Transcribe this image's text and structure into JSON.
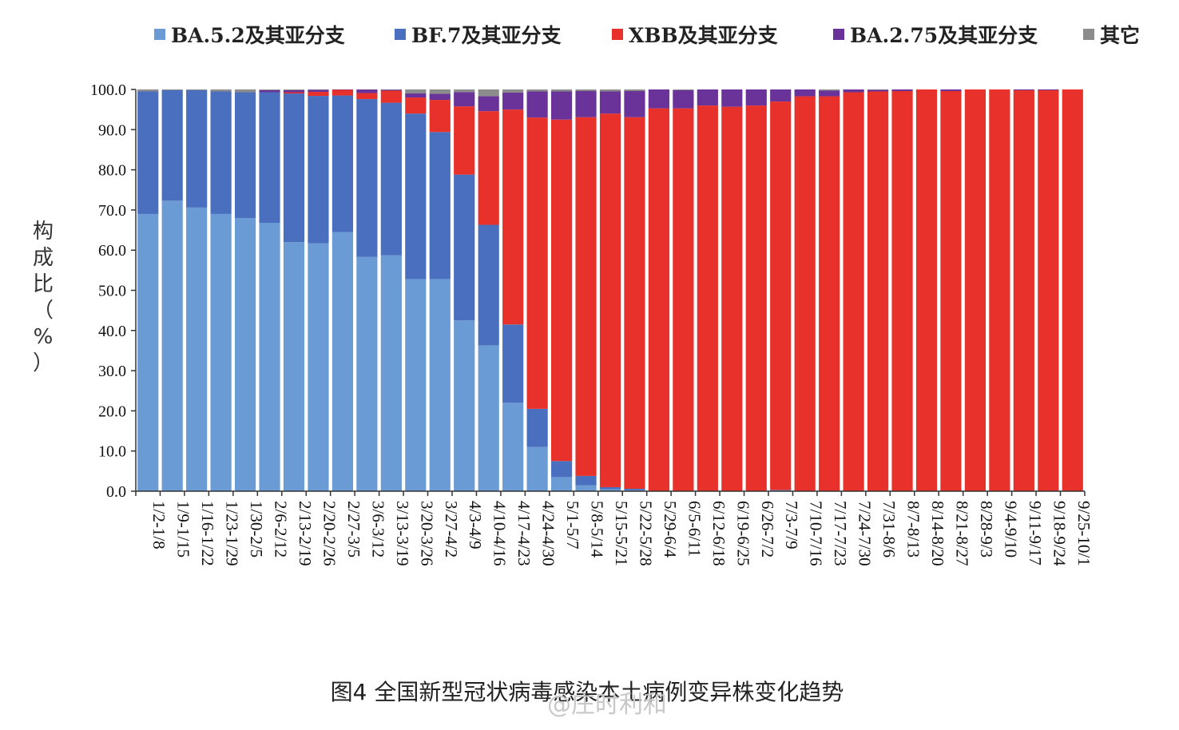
{
  "chart_data": {
    "type": "bar",
    "stacked": true,
    "caption": "图4 全国新型冠状病毒感染本土病例变异株变化趋势",
    "ylabel": "构成比（%）",
    "ylim": [
      0,
      100
    ],
    "yticks": [
      "0.0",
      "10.0",
      "20.0",
      "30.0",
      "40.0",
      "50.0",
      "60.0",
      "70.0",
      "80.0",
      "90.0",
      "100.0"
    ],
    "legend_position": "top",
    "grid": false,
    "categories": [
      "1/2-1/8",
      "1/9-1/15",
      "1/16-1/22",
      "1/23-1/29",
      "1/30-2/5",
      "2/6-2/12",
      "2/13-2/19",
      "2/20-2/26",
      "2/27-3/5",
      "3/6-3/12",
      "3/13-3/19",
      "3/20-3/26",
      "3/27-4/2",
      "4/3-4/9",
      "4/10-4/16",
      "4/17-4/23",
      "4/24-4/30",
      "5/1-5/7",
      "5/8-5/14",
      "5/15-5/21",
      "5/22-5/28",
      "5/29-6/4",
      "6/5-6/11",
      "6/12-6/18",
      "6/19-6/25",
      "6/26-7/2",
      "7/3-7/9",
      "7/10-7/16",
      "7/17-7/23",
      "7/24-7/30",
      "7/31-8/6",
      "8/7-8/13",
      "8/14-8/20",
      "8/21-8/27",
      "8/28-9/3",
      "9/4-9/10",
      "9/11-9/17",
      "9/18-9/24",
      "9/25-10/1"
    ],
    "series": [
      {
        "name": "BA.5.2及其亚分支",
        "color": "#6a9bd4",
        "values": [
          69,
          72.3,
          70.6,
          69,
          68,
          66.8,
          62,
          61.7,
          64.5,
          58.3,
          58.7,
          52.8,
          52.8,
          42.5,
          36.3,
          22,
          11,
          3.5,
          1.5,
          0.5,
          0.3,
          0,
          0,
          0,
          0,
          0,
          0.3,
          0,
          0,
          0,
          0,
          0,
          0,
          0,
          0,
          0,
          0,
          0,
          0
        ]
      },
      {
        "name": "BF.7及其亚分支",
        "color": "#4a6fbf",
        "values": [
          30.5,
          27.5,
          29.2,
          30.5,
          31.3,
          32.5,
          37,
          36.7,
          34,
          39.3,
          38,
          41.2,
          36.6,
          36.3,
          30,
          19.5,
          9.5,
          4,
          2.3,
          0.5,
          0.3,
          0,
          0,
          0,
          0,
          0,
          0,
          0,
          0,
          0,
          0,
          0,
          0,
          0,
          0,
          0,
          0,
          0,
          0
        ]
      },
      {
        "name": "XBB及其亚分支",
        "color": "#e8312a",
        "values": [
          0,
          0,
          0,
          0,
          0,
          0,
          0.3,
          1,
          1.5,
          1.5,
          3,
          4,
          8,
          17,
          28.3,
          53.5,
          72.5,
          85,
          89.3,
          93,
          92.5,
          95.3,
          95.3,
          96,
          95.7,
          96,
          96.7,
          98.3,
          98.3,
          99.3,
          99.5,
          99.6,
          100,
          99.6,
          100,
          100,
          99.8,
          99.8,
          100
        ]
      },
      {
        "name": "BA.2.75及其亚分支",
        "color": "#6a3399",
        "values": [
          0,
          0,
          0,
          0,
          0,
          0.5,
          0.5,
          0.8,
          0.5,
          1,
          0.5,
          1,
          1.5,
          3.5,
          3.7,
          4.2,
          6.5,
          7,
          6.5,
          5.5,
          6.5,
          4.7,
          4.5,
          4,
          4.3,
          4,
          3,
          1.7,
          1.4,
          0.7,
          0.4,
          0.4,
          0,
          0.4,
          0,
          0,
          0.2,
          0.2,
          0
        ]
      },
      {
        "name": "其它",
        "color": "#8c8c8c",
        "values": [
          0.5,
          0.2,
          0.2,
          0.5,
          0.7,
          0.2,
          0.2,
          0.3,
          0,
          0,
          0.8,
          1,
          1.1,
          0.7,
          1.7,
          0.8,
          0.5,
          0.5,
          0.4,
          0.5,
          0.4,
          0,
          0.2,
          0,
          0,
          0,
          0,
          0,
          0.3,
          0,
          0.1,
          0,
          0,
          0,
          0,
          0,
          0,
          0,
          0
        ]
      }
    ]
  },
  "watermark": "@庄时利和"
}
